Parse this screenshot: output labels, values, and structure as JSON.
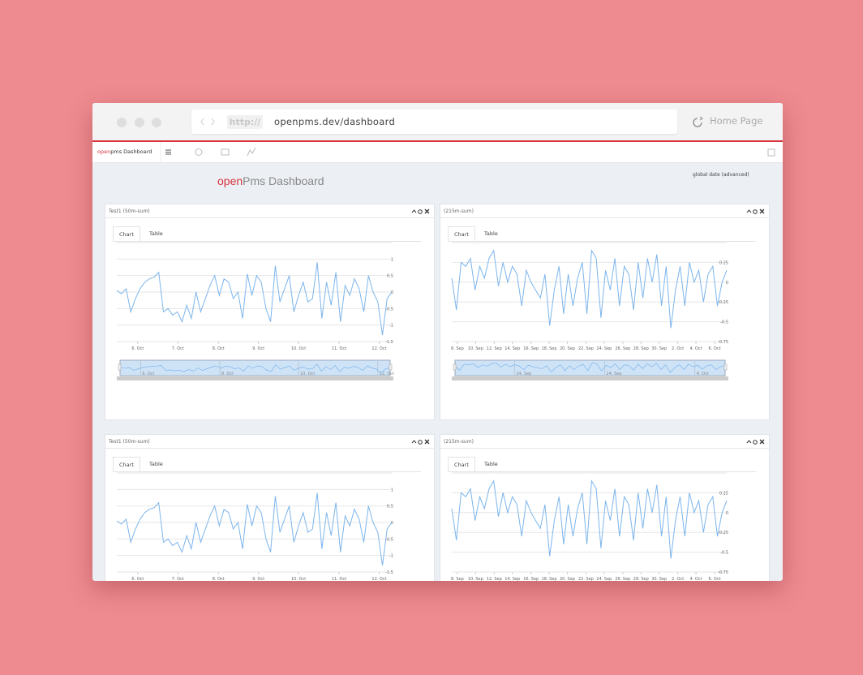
{
  "browser": {
    "url_prefix": "http://",
    "url": "openpms.dev/dashboard",
    "home": "Home Page"
  },
  "navbar": {
    "brand_open": "open",
    "brand_rest": "pms Dashboard"
  },
  "page": {
    "title_open": "open",
    "title_rest": "Pms Dashboard",
    "global_date": "global date (advanced)"
  },
  "panels": [
    {
      "title": "Test1 (50m-sum)",
      "tabs": [
        "Chart",
        "Table"
      ],
      "chart_data": {
        "type": "line",
        "color": "#7cb5ec",
        "grid": true,
        "values": [
          0.05,
          -0.05,
          0.1,
          -0.6,
          -0.2,
          0.1,
          0.3,
          0.4,
          0.45,
          0.6,
          -0.6,
          -0.5,
          -0.7,
          -0.6,
          -0.9,
          -0.4,
          -0.8,
          0.0,
          -0.6,
          -0.2,
          0.2,
          0.5,
          -0.1,
          0.4,
          0.3,
          -0.2,
          0.0,
          -0.8,
          0.55,
          -0.1,
          0.5,
          0.3,
          -0.5,
          -0.9,
          0.8,
          -0.3,
          0.1,
          0.5,
          -0.6,
          -0.1,
          0.3,
          -0.3,
          -0.2,
          0.9,
          -0.8,
          0.3,
          -0.4,
          0.6,
          -0.9,
          0.2,
          -0.1,
          0.4,
          0.1,
          -0.6,
          0.5,
          0.0,
          -0.3,
          -1.3,
          -0.2,
          0.0
        ],
        "xlim": [
          0,
          59
        ],
        "xticks": [
          {
            "value": 4.5,
            "label": "6. Oct"
          },
          {
            "value": 13.1,
            "label": "7. Oct"
          },
          {
            "value": 21.8,
            "label": "8. Oct"
          },
          {
            "value": 30.4,
            "label": "9. Oct"
          },
          {
            "value": 39.0,
            "label": "10. Oct"
          },
          {
            "value": 47.7,
            "label": "11. Oct"
          },
          {
            "value": 56.3,
            "label": "12. Oct"
          }
        ],
        "ylim": [
          -1.5,
          1.5
        ],
        "yticks": [
          -1.5,
          -1,
          -0.5,
          0,
          0.5,
          1
        ],
        "navigator": {
          "xticks": [
            {
              "value": 4.5,
              "label": "6. Oct"
            },
            {
              "value": 21.8,
              "label": "8. Oct"
            },
            {
              "value": 39.0,
              "label": "10. Oct"
            },
            {
              "value": 56.3,
              "label": "12. Oct"
            }
          ]
        }
      }
    },
    {
      "title": "(215m-sum)",
      "tabs": [
        "Chart",
        "Table"
      ],
      "chart_data": {
        "type": "line",
        "color": "#7cb5ec",
        "grid": true,
        "values": [
          0.05,
          -0.35,
          0.25,
          0.2,
          0.3,
          -0.1,
          0.2,
          0.05,
          0.3,
          0.4,
          -0.05,
          0.25,
          0.0,
          0.2,
          0.1,
          -0.3,
          0.15,
          0.0,
          -0.1,
          -0.2,
          0.1,
          -0.55,
          -0.1,
          0.2,
          -0.4,
          0.1,
          -0.3,
          0.05,
          0.25,
          -0.4,
          0.4,
          0.3,
          -0.45,
          0.15,
          -0.1,
          0.3,
          -0.3,
          0.2,
          0.1,
          -0.35,
          0.25,
          -0.2,
          0.3,
          0.0,
          0.35,
          -0.3,
          0.2,
          -0.58,
          -0.1,
          0.2,
          -0.3,
          0.25,
          0.0,
          0.15,
          -0.25,
          0.1,
          0.2,
          -0.3,
          0.0,
          0.15
        ],
        "xlim": [
          0,
          59
        ],
        "xticks": [
          {
            "value": 1.2,
            "label": "8. Sep"
          },
          {
            "value": 5.1,
            "label": "10. Sep"
          },
          {
            "value": 9.1,
            "label": "12. Sep"
          },
          {
            "value": 13.0,
            "label": "14. Sep"
          },
          {
            "value": 17.0,
            "label": "16. Sep"
          },
          {
            "value": 20.9,
            "label": "18. Sep"
          },
          {
            "value": 24.8,
            "label": "20. Sep"
          },
          {
            "value": 28.8,
            "label": "22. Sep"
          },
          {
            "value": 32.7,
            "label": "24. Sep"
          },
          {
            "value": 36.7,
            "label": "26. Sep"
          },
          {
            "value": 40.6,
            "label": "28. Sep"
          },
          {
            "value": 44.5,
            "label": "30. Sep"
          },
          {
            "value": 48.5,
            "label": "2. Oct"
          },
          {
            "value": 52.4,
            "label": "4. Oct"
          },
          {
            "value": 56.4,
            "label": "6. Oct"
          }
        ],
        "ylim": [
          -0.75,
          0.5
        ],
        "yticks": [
          -0.75,
          -0.5,
          -0.25,
          0,
          0.25
        ],
        "navigator": {
          "xticks": [
            {
              "value": 13.0,
              "label": "14. Sep"
            },
            {
              "value": 32.7,
              "label": "24. Sep"
            },
            {
              "value": 52.4,
              "label": "4. Oct"
            }
          ]
        }
      }
    },
    {
      "title": "Test1 (50m-sum)",
      "tabs": [
        "Chart",
        "Table"
      ],
      "chart_data": {
        "type": "line",
        "color": "#7cb5ec",
        "grid": true,
        "values": [
          0.05,
          -0.05,
          0.1,
          -0.6,
          -0.2,
          0.1,
          0.3,
          0.4,
          0.45,
          0.6,
          -0.6,
          -0.5,
          -0.7,
          -0.6,
          -0.9,
          -0.4,
          -0.8,
          0.0,
          -0.6,
          -0.2,
          0.2,
          0.5,
          -0.1,
          0.4,
          0.3,
          -0.2,
          0.0,
          -0.8,
          0.55,
          -0.1,
          0.5,
          0.3,
          -0.5,
          -0.9,
          0.8,
          -0.3,
          0.1,
          0.5,
          -0.6,
          -0.1,
          0.3,
          -0.3,
          -0.2,
          0.9,
          -0.8,
          0.3,
          -0.4,
          0.6,
          -0.9,
          0.2,
          -0.1,
          0.4,
          0.1,
          -0.6,
          0.5,
          0.0,
          -0.3,
          -1.3,
          -0.2,
          0.0
        ],
        "xlim": [
          0,
          59
        ],
        "xticks": [
          {
            "value": 4.5,
            "label": "6. Oct"
          },
          {
            "value": 13.1,
            "label": "7. Oct"
          },
          {
            "value": 21.8,
            "label": "8. Oct"
          },
          {
            "value": 30.4,
            "label": "9. Oct"
          },
          {
            "value": 39.0,
            "label": "10. Oct"
          },
          {
            "value": 47.7,
            "label": "11. Oct"
          },
          {
            "value": 56.3,
            "label": "12. Oct"
          }
        ],
        "ylim": [
          -1.5,
          1.5
        ],
        "yticks": [
          -1.5,
          -1,
          -0.5,
          0,
          0.5,
          1
        ]
      }
    },
    {
      "title": "(215m-sum)",
      "tabs": [
        "Chart",
        "Table"
      ],
      "chart_data": {
        "type": "line",
        "color": "#7cb5ec",
        "grid": true,
        "values": [
          0.05,
          -0.35,
          0.25,
          0.2,
          0.3,
          -0.1,
          0.2,
          0.05,
          0.3,
          0.4,
          -0.05,
          0.25,
          0.0,
          0.2,
          0.1,
          -0.3,
          0.15,
          0.0,
          -0.1,
          -0.2,
          0.1,
          -0.55,
          -0.1,
          0.2,
          -0.4,
          0.1,
          -0.3,
          0.05,
          0.25,
          -0.4,
          0.4,
          0.3,
          -0.45,
          0.15,
          -0.1,
          0.3,
          -0.3,
          0.2,
          0.1,
          -0.35,
          0.25,
          -0.2,
          0.3,
          0.0,
          0.35,
          -0.3,
          0.2,
          -0.58,
          -0.1,
          0.2,
          -0.3,
          0.25,
          0.0,
          0.15,
          -0.25,
          0.1,
          0.2,
          -0.3,
          0.0,
          0.15
        ],
        "xlim": [
          0,
          59
        ],
        "xticks": [
          {
            "value": 1.2,
            "label": "8. Sep"
          },
          {
            "value": 5.1,
            "label": "10. Sep"
          },
          {
            "value": 9.1,
            "label": "12. Sep"
          },
          {
            "value": 13.0,
            "label": "14. Sep"
          },
          {
            "value": 17.0,
            "label": "16. Sep"
          },
          {
            "value": 20.9,
            "label": "18. Sep"
          },
          {
            "value": 24.8,
            "label": "20. Sep"
          },
          {
            "value": 28.8,
            "label": "22. Sep"
          },
          {
            "value": 32.7,
            "label": "24. Sep"
          },
          {
            "value": 36.7,
            "label": "26. Sep"
          },
          {
            "value": 40.6,
            "label": "28. Sep"
          },
          {
            "value": 44.5,
            "label": "30. Sep"
          },
          {
            "value": 48.5,
            "label": "2. Oct"
          },
          {
            "value": 52.4,
            "label": "4. Oct"
          },
          {
            "value": 56.4,
            "label": "6. Oct"
          }
        ],
        "ylim": [
          -0.75,
          0.5
        ],
        "yticks": [
          -0.75,
          -0.5,
          -0.25,
          0,
          0.25
        ]
      }
    }
  ]
}
